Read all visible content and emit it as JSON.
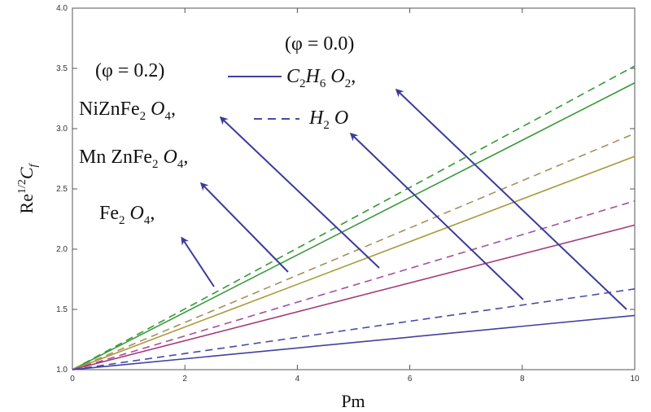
{
  "chart_data": {
    "type": "line",
    "xlabel": "Pm",
    "ylabel": "Re",
    "ylabel_sup": "1/2",
    "ylabel_tail": "C",
    "ylabel_tail_sub": "f",
    "xlim": [
      0,
      10
    ],
    "ylim": [
      1.0,
      4.0
    ],
    "xticks": [
      0,
      2,
      4,
      6,
      8,
      10
    ],
    "yticks": [
      1.0,
      1.5,
      2.0,
      2.5,
      3.0,
      3.5,
      4.0
    ],
    "grid": false,
    "x": [
      0,
      10
    ],
    "series": [
      {
        "color": "#3a9a3a",
        "dash": true,
        "values": [
          1.0,
          3.52
        ]
      },
      {
        "color": "#3a9a3a",
        "dash": false,
        "values": [
          1.0,
          3.38
        ]
      },
      {
        "color": "#a88f5a",
        "dash": true,
        "values": [
          1.0,
          2.96
        ]
      },
      {
        "color": "#a99a3a",
        "dash": false,
        "values": [
          1.0,
          2.77
        ]
      },
      {
        "color": "#a44ea4",
        "dash": true,
        "values": [
          1.0,
          2.4
        ]
      },
      {
        "color": "#a33a78",
        "dash": false,
        "values": [
          1.0,
          2.2
        ]
      },
      {
        "color": "#4a4aa8",
        "dash": true,
        "values": [
          1.0,
          1.67
        ]
      },
      {
        "color": "#4040a0",
        "dash": false,
        "values": [
          1.0,
          1.45
        ]
      }
    ],
    "annotations": {
      "phi00": "(φ = 0.0)",
      "phi02": "(φ = 0.2)",
      "c2h6o2": {
        "a": "C",
        "s1": "2",
        "b": "H",
        "s2": "6",
        "c": " O",
        "s3": "2",
        "d": ","
      },
      "h2o": {
        "a": "H",
        "s1": "2",
        "b": " O"
      },
      "nizn": {
        "a": "NiZnFe",
        "s1": "2",
        "b": " O",
        "s2": "4",
        "c": ","
      },
      "mnzn": {
        "a": "Mn ZnFe",
        "s1": "2",
        "b": " O",
        "s2": "4",
        "c": ","
      },
      "fe": {
        "a": "Fe",
        "s1": "2",
        "b": " O",
        "s2": "4",
        "c": ","
      }
    },
    "arrow_color": "#3b3b9a",
    "arrow_points_to": [
      "C2H6O2 solid line",
      "H2O dashed line",
      "NiZnFe2O4 line",
      "MnZnFe2O4 line",
      "Fe2O4 line"
    ]
  }
}
